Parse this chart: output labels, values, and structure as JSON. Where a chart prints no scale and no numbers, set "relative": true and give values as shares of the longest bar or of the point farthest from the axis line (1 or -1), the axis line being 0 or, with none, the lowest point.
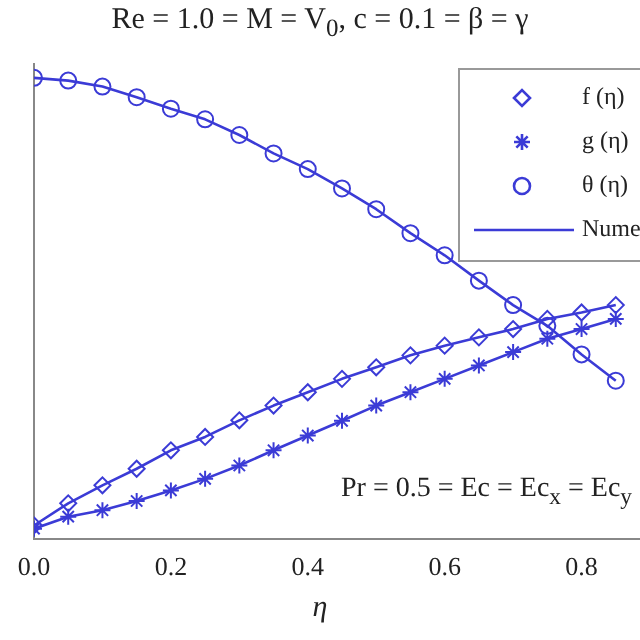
{
  "chart_data": {
    "type": "line",
    "title": "Re = 1.0 = M = V$_{0}$, c = 0.1 = β = γ",
    "xlabel": "η",
    "relative": true,
    "x": [
      0,
      0.05,
      0.1,
      0.15,
      0.2,
      0.25,
      0.3,
      0.35,
      0.4,
      0.45,
      0.5,
      0.55,
      0.6,
      0.65,
      0.7,
      0.75,
      0.8,
      0.85
    ],
    "xlim": [
      0,
      0.9
    ],
    "xticks": [
      {
        "value": 0,
        "label": "0.0"
      },
      0.2,
      0.4,
      0.6,
      0.8
    ],
    "grid": false,
    "legend": "top right",
    "annotations": [
      "Pr = 0.5 = Ec = Ec$_{x}$ = Ec$_{y}$"
    ],
    "series": [
      {
        "name": "f (η)",
        "type": "scatter",
        "marker": "diamond",
        "color": "#3b3bd6",
        "values": [
          0.029,
          0.077,
          0.116,
          0.152,
          0.192,
          0.221,
          0.257,
          0.289,
          0.318,
          0.347,
          0.372,
          0.398,
          0.419,
          0.437,
          0.455,
          0.477,
          0.491,
          0.507
        ]
      },
      {
        "name": "g (η)",
        "type": "scatter",
        "marker": "cross",
        "color": "#3b3bd6",
        "values": [
          0.022,
          0.048,
          0.062,
          0.082,
          0.105,
          0.13,
          0.159,
          0.192,
          0.224,
          0.256,
          0.289,
          0.318,
          0.347,
          0.376,
          0.405,
          0.434,
          0.455,
          0.477
        ]
      },
      {
        "name": "θ (η)",
        "type": "scatter",
        "marker": "circle",
        "color": "#3b3bd6",
        "values": [
          1,
          0.994,
          0.981,
          0.958,
          0.933,
          0.91,
          0.876,
          0.836,
          0.802,
          0.76,
          0.715,
          0.663,
          0.615,
          0.56,
          0.507,
          0.462,
          0.4,
          0.343
        ]
      },
      {
        "name": "Nume",
        "marker": "none",
        "color": "#3b3bd6",
        "values": [
          0.029,
          0.077,
          0.116,
          0.152,
          0.192,
          0.221,
          0.257,
          0.289,
          0.318,
          0.347,
          0.372,
          0.398,
          0.419,
          0.437,
          0.455,
          0.477,
          0.491,
          0.507
        ]
      },
      {
        "type": "line",
        "marker": "none",
        "color": "#3b3bd6",
        "values": [
          0.022,
          0.048,
          0.062,
          0.082,
          0.105,
          0.13,
          0.159,
          0.192,
          0.224,
          0.256,
          0.289,
          0.318,
          0.347,
          0.376,
          0.405,
          0.434,
          0.455,
          0.477
        ]
      },
      {
        "type": "line",
        "marker": "none",
        "color": "#3b3bd6",
        "values": [
          1,
          0.994,
          0.981,
          0.958,
          0.933,
          0.91,
          0.876,
          0.836,
          0.802,
          0.76,
          0.715,
          0.663,
          0.615,
          0.56,
          0.507,
          0.462,
          0.4,
          0.343
        ]
      }
    ]
  }
}
